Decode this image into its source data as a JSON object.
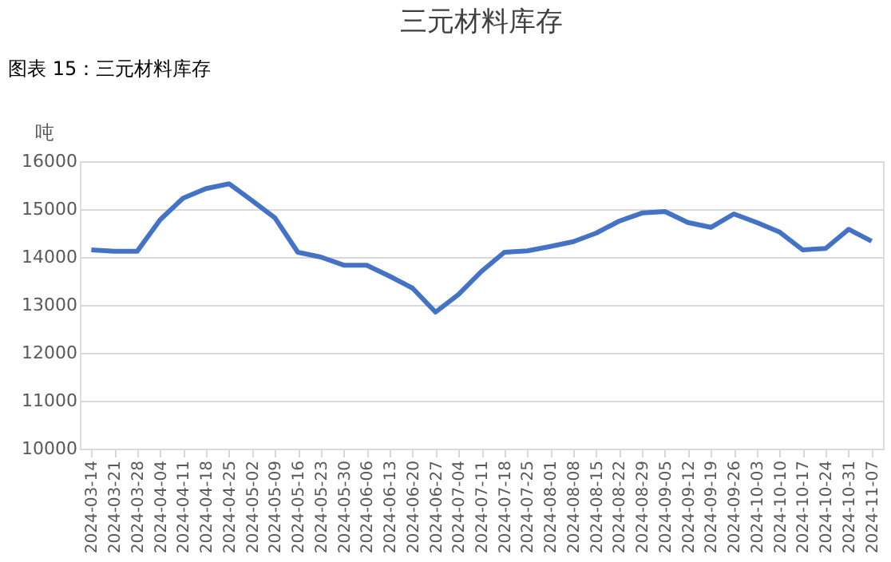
{
  "chart_data": {
    "type": "line",
    "title": "三元材料库存",
    "ylabel": "吨",
    "annotations": [
      "图表 15：三元材料库存"
    ],
    "categories": [
      "2024-03-14",
      "2024-03-21",
      "2024-03-28",
      "2024-04-04",
      "2024-04-11",
      "2024-04-18",
      "2024-04-25",
      "2024-05-02",
      "2024-05-09",
      "2024-05-16",
      "2024-05-23",
      "2024-05-30",
      "2024-06-06",
      "2024-06-13",
      "2024-06-20",
      "2024-06-27",
      "2024-07-04",
      "2024-07-11",
      "2024-07-18",
      "2024-07-25",
      "2024-08-01",
      "2024-08-08",
      "2024-08-15",
      "2024-08-22",
      "2024-08-29",
      "2024-09-05",
      "2024-09-12",
      "2024-09-19",
      "2024-09-26",
      "2024-10-03",
      "2024-10-10",
      "2024-10-17",
      "2024-10-24",
      "2024-10-31",
      "2024-11-07"
    ],
    "series": [
      {
        "color": "#4472c4",
        "values": [
          14150,
          14120,
          14120,
          14780,
          15230,
          15430,
          15530,
          15180,
          14820,
          14100,
          14000,
          13830,
          13830,
          13600,
          13350,
          12850,
          13220,
          13700,
          14100,
          14130,
          14220,
          14320,
          14500,
          14750,
          14920,
          14950,
          14720,
          14620,
          14900,
          14720,
          14520,
          14150,
          14180,
          14580,
          14330
        ]
      }
    ],
    "ylim": [
      10000,
      16000
    ],
    "yticks": [
      10000,
      11000,
      12000,
      13000,
      14000,
      15000,
      16000
    ],
    "grid": "y",
    "legend": false,
    "marker": "none",
    "line_style": "solid"
  }
}
